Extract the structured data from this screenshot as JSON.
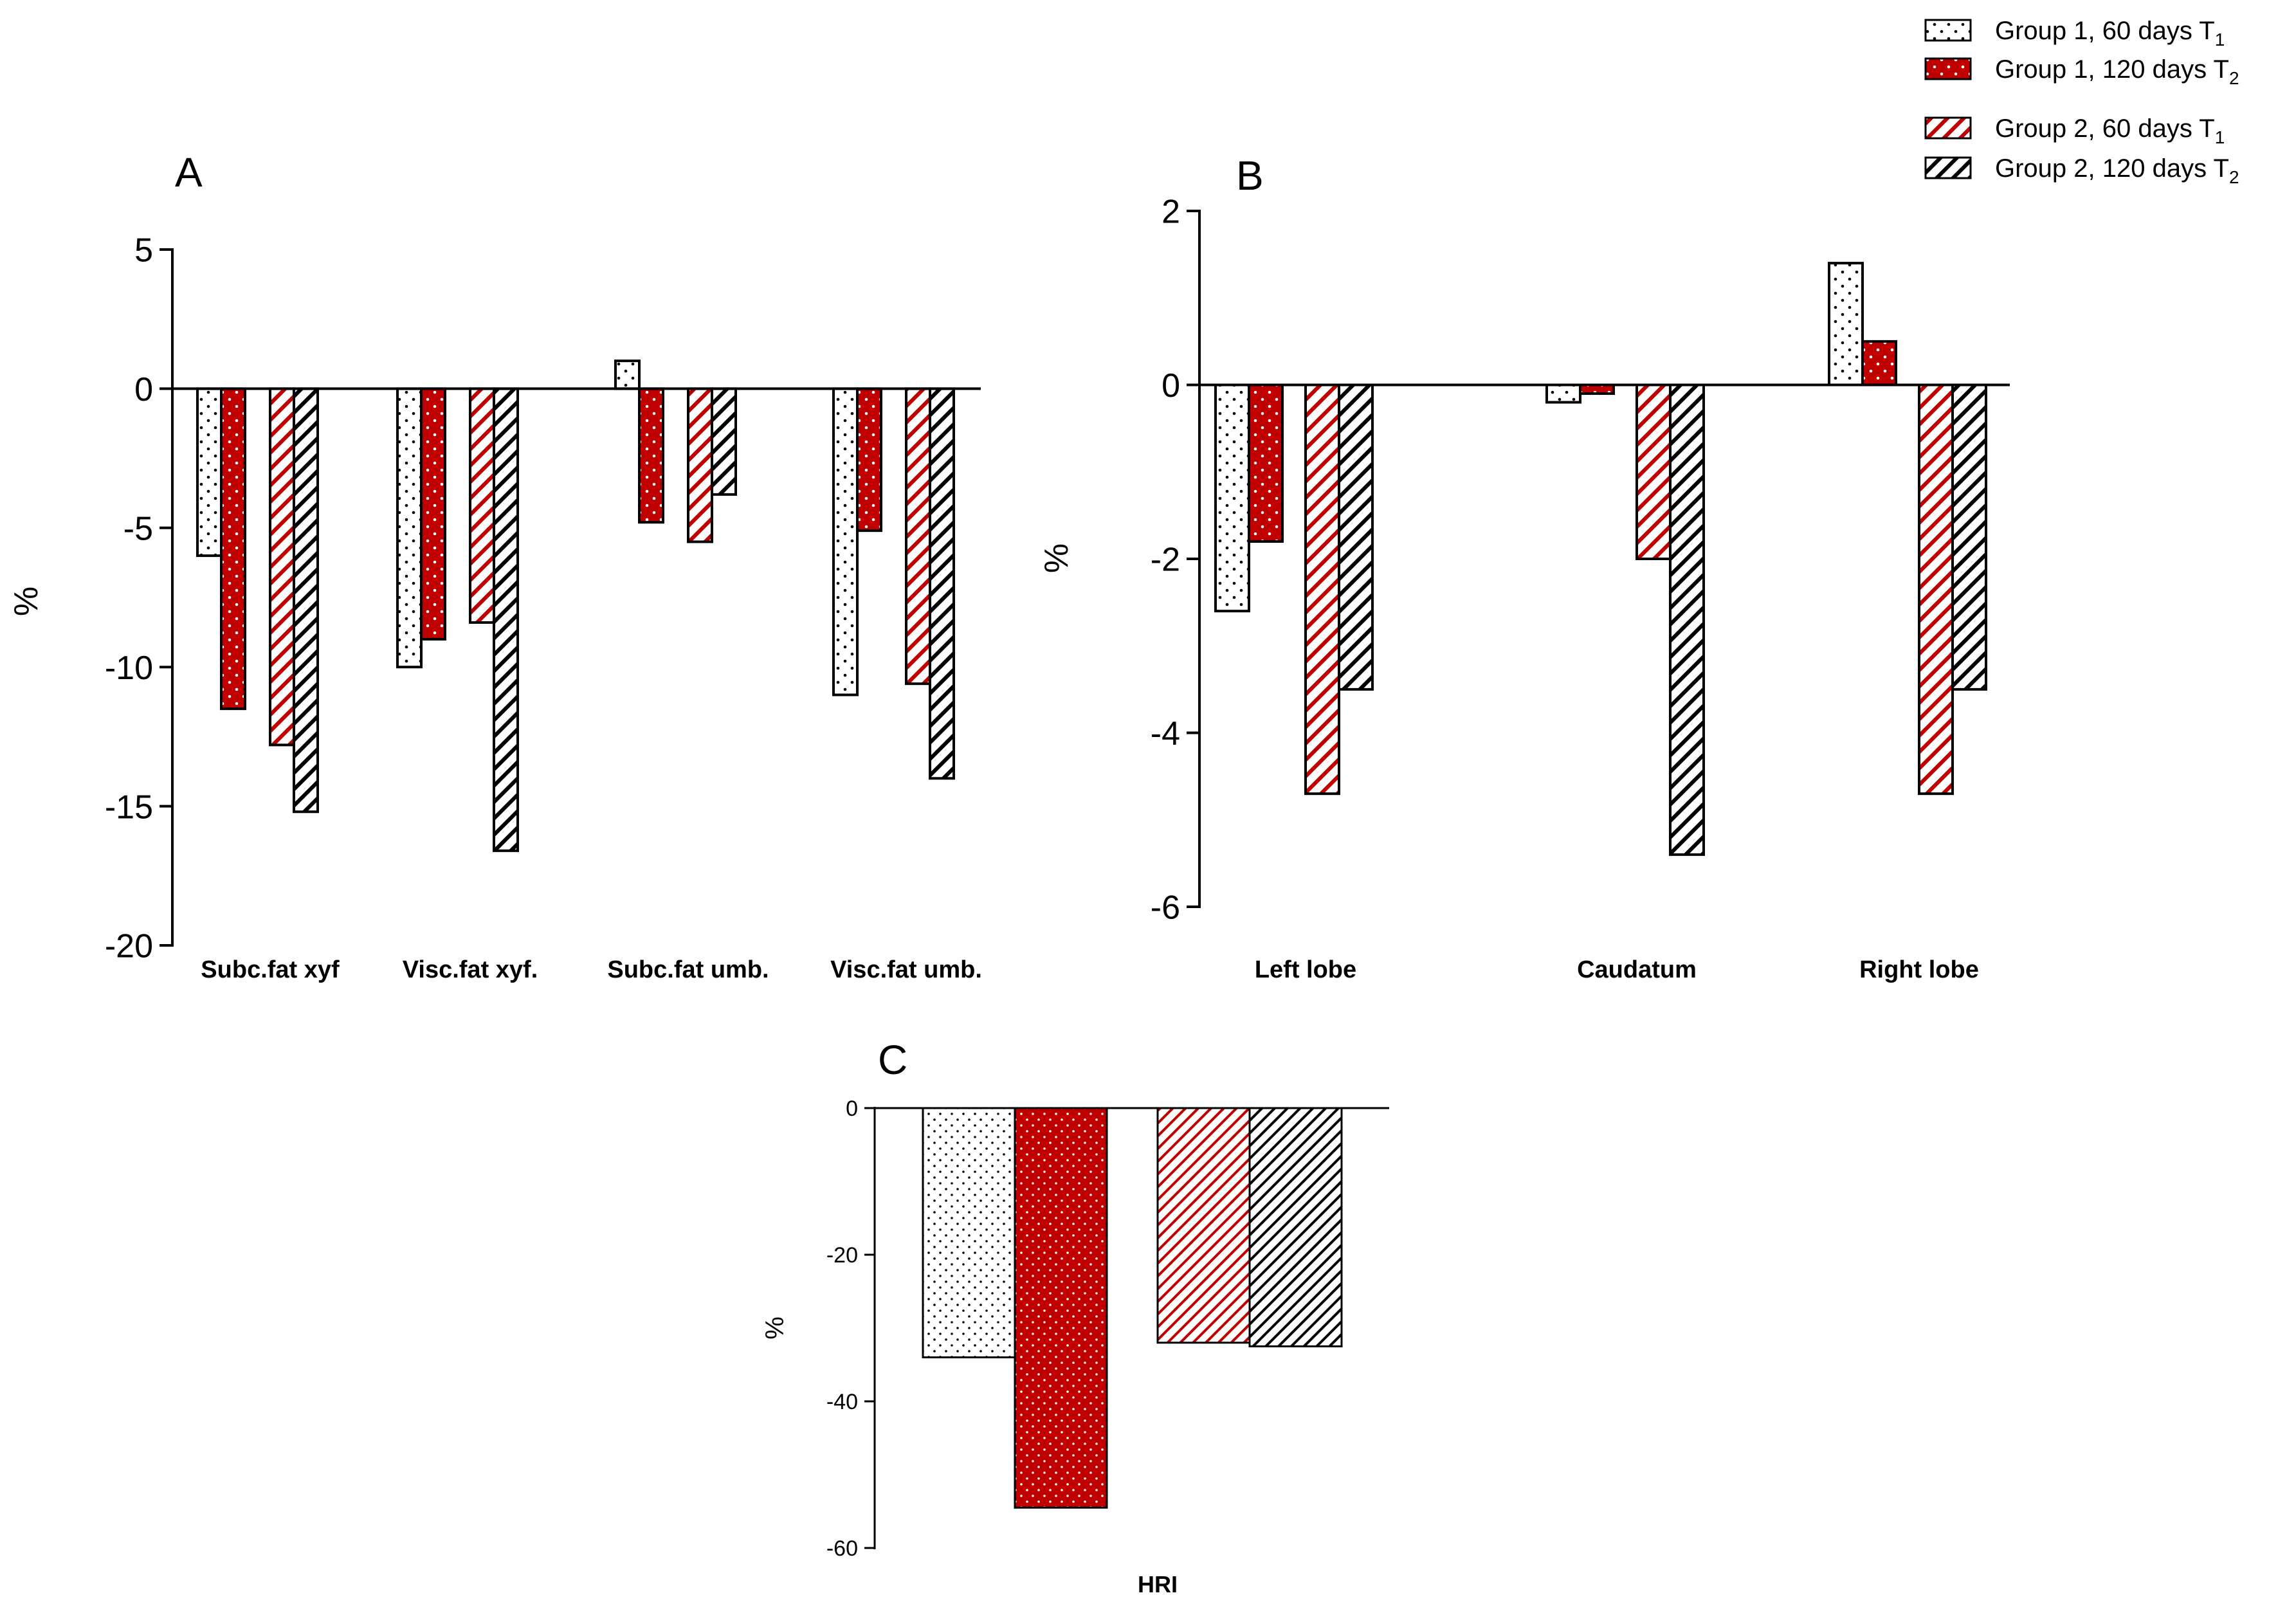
{
  "legend": {
    "items": [
      {
        "base": "Group 1, 60 days T",
        "sub": "1",
        "pattern": "dots-white"
      },
      {
        "base": "Group 1, 120 days T",
        "sub": "2",
        "pattern": "dots-red"
      },
      {
        "base": "Group 2, 60 days T",
        "sub": "1",
        "pattern": "hatch-red"
      },
      {
        "base": "Group 2, 120 days T",
        "sub": "2",
        "pattern": "hatch-black"
      }
    ]
  },
  "colors": {
    "red": "#c00000",
    "black": "#000000",
    "white": "#ffffff"
  },
  "chart_data": [
    {
      "panel": "A",
      "type": "bar",
      "ylabel": "%",
      "ylim": [
        -20,
        5
      ],
      "yticks": [
        5,
        0,
        -5,
        -10,
        -15,
        -20
      ],
      "categories": [
        "Subc.fat xyf",
        "Visc.fat xyf.",
        "Subc.fat umb.",
        "Visc.fat umb."
      ],
      "series": [
        {
          "name": "Group 1, 60 days T1",
          "values": [
            -6.0,
            -10.0,
            1.0,
            -11.0
          ]
        },
        {
          "name": "Group 1, 120 days T2",
          "values": [
            -11.5,
            -9.0,
            -4.8,
            -5.1
          ]
        },
        {
          "name": "Group 2, 60 days T1",
          "values": [
            -12.8,
            -8.4,
            -5.5,
            -10.6
          ]
        },
        {
          "name": "Group 2, 120 days T2",
          "values": [
            -15.2,
            -16.6,
            -3.8,
            -14.0
          ]
        }
      ]
    },
    {
      "panel": "B",
      "type": "bar",
      "ylabel": "%",
      "ylim": [
        -6,
        2
      ],
      "yticks": [
        2,
        0,
        -2,
        -4,
        -6
      ],
      "categories": [
        "Left lobe",
        "Caudatum",
        "Right lobe"
      ],
      "series": [
        {
          "name": "Group 1, 60 days T1",
          "values": [
            -2.6,
            -0.2,
            1.4
          ]
        },
        {
          "name": "Group 1, 120 days T2",
          "values": [
            -1.8,
            -0.1,
            0.5
          ]
        },
        {
          "name": "Group 2, 60 days T1",
          "values": [
            -4.7,
            -2.0,
            -4.7
          ]
        },
        {
          "name": "Group 2, 120 days T2",
          "values": [
            -3.5,
            -5.4,
            -3.5
          ]
        }
      ]
    },
    {
      "panel": "C",
      "type": "bar",
      "ylabel": "%",
      "ylim": [
        -60,
        0
      ],
      "yticks": [
        0,
        -20,
        -40,
        -60
      ],
      "categories": [
        "HRI"
      ],
      "series": [
        {
          "name": "Group 1, 60 days T1",
          "values": [
            -34
          ]
        },
        {
          "name": "Group 1, 120 days T2",
          "values": [
            -54.5
          ]
        },
        {
          "name": "Group 2, 60 days T1",
          "values": [
            -32
          ]
        },
        {
          "name": "Group 2, 120 days T2",
          "values": [
            -32.5
          ]
        }
      ]
    }
  ]
}
